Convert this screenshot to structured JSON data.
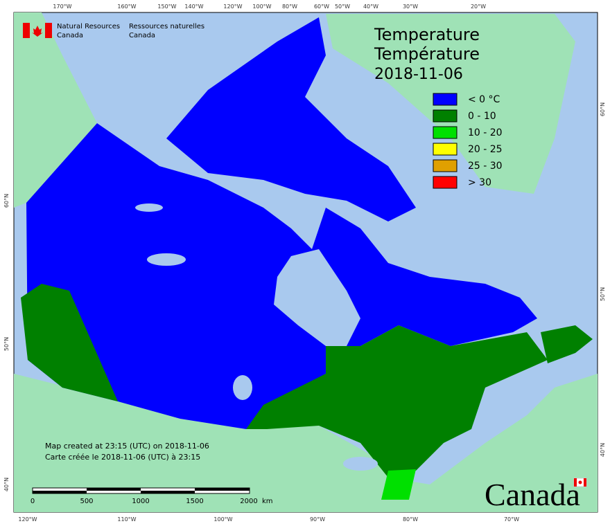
{
  "header": {
    "org_en": [
      "Natural Resources",
      "Canada"
    ],
    "org_fr": [
      "Ressources naturelles",
      "Canada"
    ]
  },
  "title": {
    "lines": [
      "Temperature",
      "Température"
    ],
    "date": "2018-11-06"
  },
  "legend": [
    {
      "label": "< 0 °C",
      "color": "#0000ff"
    },
    {
      "label": "0 - 10",
      "color": "#008000"
    },
    {
      "label": "10 - 20",
      "color": "#00e000"
    },
    {
      "label": "20 - 25",
      "color": "#ffff00"
    },
    {
      "label": "25 - 30",
      "color": "#e0a000"
    },
    {
      "label": "> 30",
      "color": "#ff0000"
    }
  ],
  "credits": [
    "Map created at 23:15 (UTC) on 2018-11-06",
    "Carte créée le 2018-11-06 (UTC) à 23:15"
  ],
  "scale": {
    "ticks": [
      "0",
      "500",
      "1000",
      "1500",
      "2000"
    ],
    "unit": "km"
  },
  "graticule": {
    "top": [
      "170°W",
      "160°W",
      "150°W",
      "140°W",
      "120°W",
      "100°W",
      "80°W",
      "60°W",
      "50°W",
      "40°W",
      "30°W",
      "20°W"
    ],
    "bottom": [
      "120°W",
      "110°W",
      "100°W",
      "90°W",
      "80°W",
      "70°W"
    ],
    "left": [
      "60°N",
      "50°N",
      "40°N"
    ],
    "right": [
      "60°N",
      "50°N",
      "40°N"
    ]
  },
  "wordmark": "Canada"
}
